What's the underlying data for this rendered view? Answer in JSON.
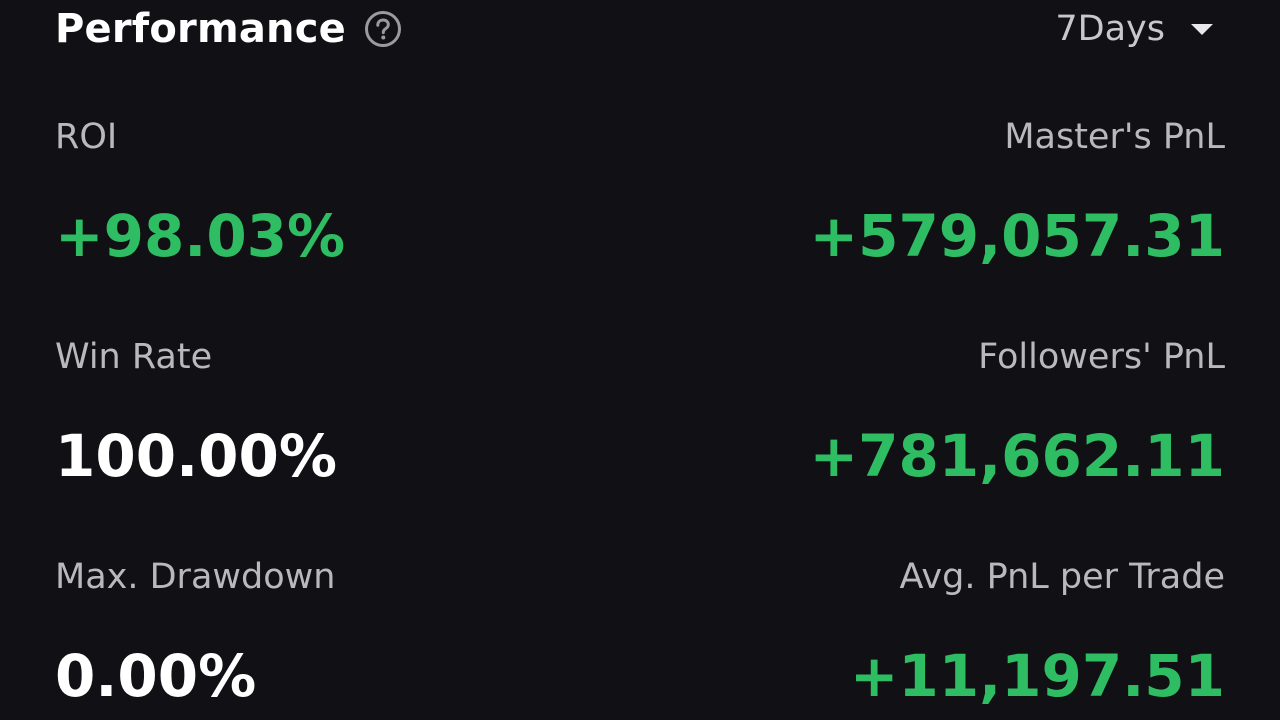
{
  "header": {
    "title": "Performance",
    "help_icon": "question-circle-icon",
    "period": "7Days",
    "period_icon": "caret-down-icon"
  },
  "metrics": {
    "roi": {
      "label": "ROI",
      "value": "+98.03%"
    },
    "masters_pnl": {
      "label": "Master's PnL",
      "value": "+579,057.31"
    },
    "win_rate": {
      "label": "Win Rate",
      "value": "100.00%"
    },
    "followers_pnl": {
      "label": "Followers' PnL",
      "value": "+781,662.11"
    },
    "max_drawdown": {
      "label": "Max. Drawdown",
      "value": "0.00%"
    },
    "avg_pnl_per_trade": {
      "label": "Avg. PnL per Trade",
      "value": "+11,197.51"
    }
  },
  "colors": {
    "background": "#111014",
    "positive": "#2ebd63",
    "neutral_value": "#ffffff",
    "label": "#b9b9bd"
  }
}
